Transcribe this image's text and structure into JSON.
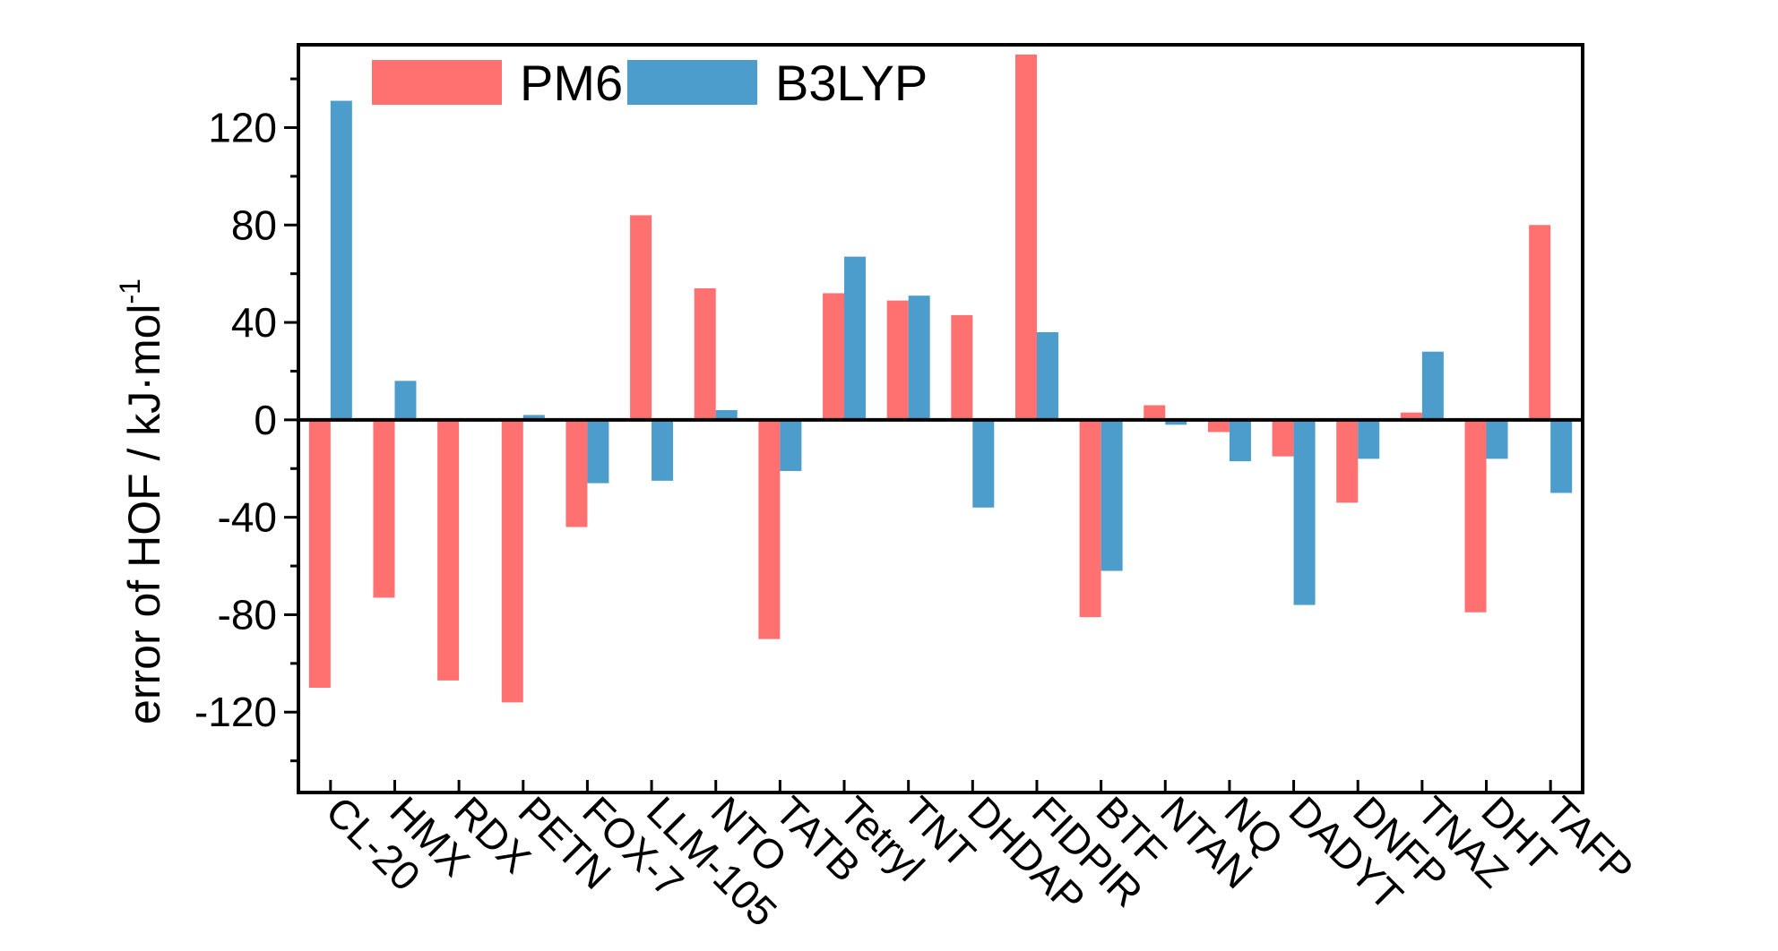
{
  "chart_data": {
    "type": "bar",
    "categories": [
      "CL-20",
      "HMX",
      "RDX",
      "PETN",
      "FOX-7",
      "LLM-105",
      "NTO",
      "TATB",
      "Tetryl",
      "TNT",
      "DHDAP",
      "FIDPIR",
      "BTF",
      "NTAN",
      "NQ",
      "DADYT",
      "DNFP",
      "TNAZ",
      "DHT",
      "TAFP"
    ],
    "series": [
      {
        "name": "PM6",
        "color": "#ff7070",
        "values": [
          -110,
          -73,
          -107,
          -116,
          -44,
          84,
          54,
          -90,
          52,
          49,
          43,
          150,
          -81,
          6,
          -5,
          -15,
          -34,
          3,
          -79,
          80
        ]
      },
      {
        "name": "B3LYP",
        "color": "#4c9dcb",
        "values": [
          131,
          16,
          0,
          2,
          -26,
          -25,
          4,
          -21,
          67,
          51,
          -36,
          36,
          -62,
          -2,
          -17,
          -76,
          -16,
          28,
          -16,
          -30
        ]
      }
    ],
    "ylabel": "error of HOF / kJ·mol",
    "ylabel_superscript": "-1",
    "ylim": [
      -153,
      154
    ],
    "yticks": [
      -120,
      -80,
      -40,
      0,
      40,
      80,
      120
    ],
    "legend": "top-left",
    "grid": false
  }
}
